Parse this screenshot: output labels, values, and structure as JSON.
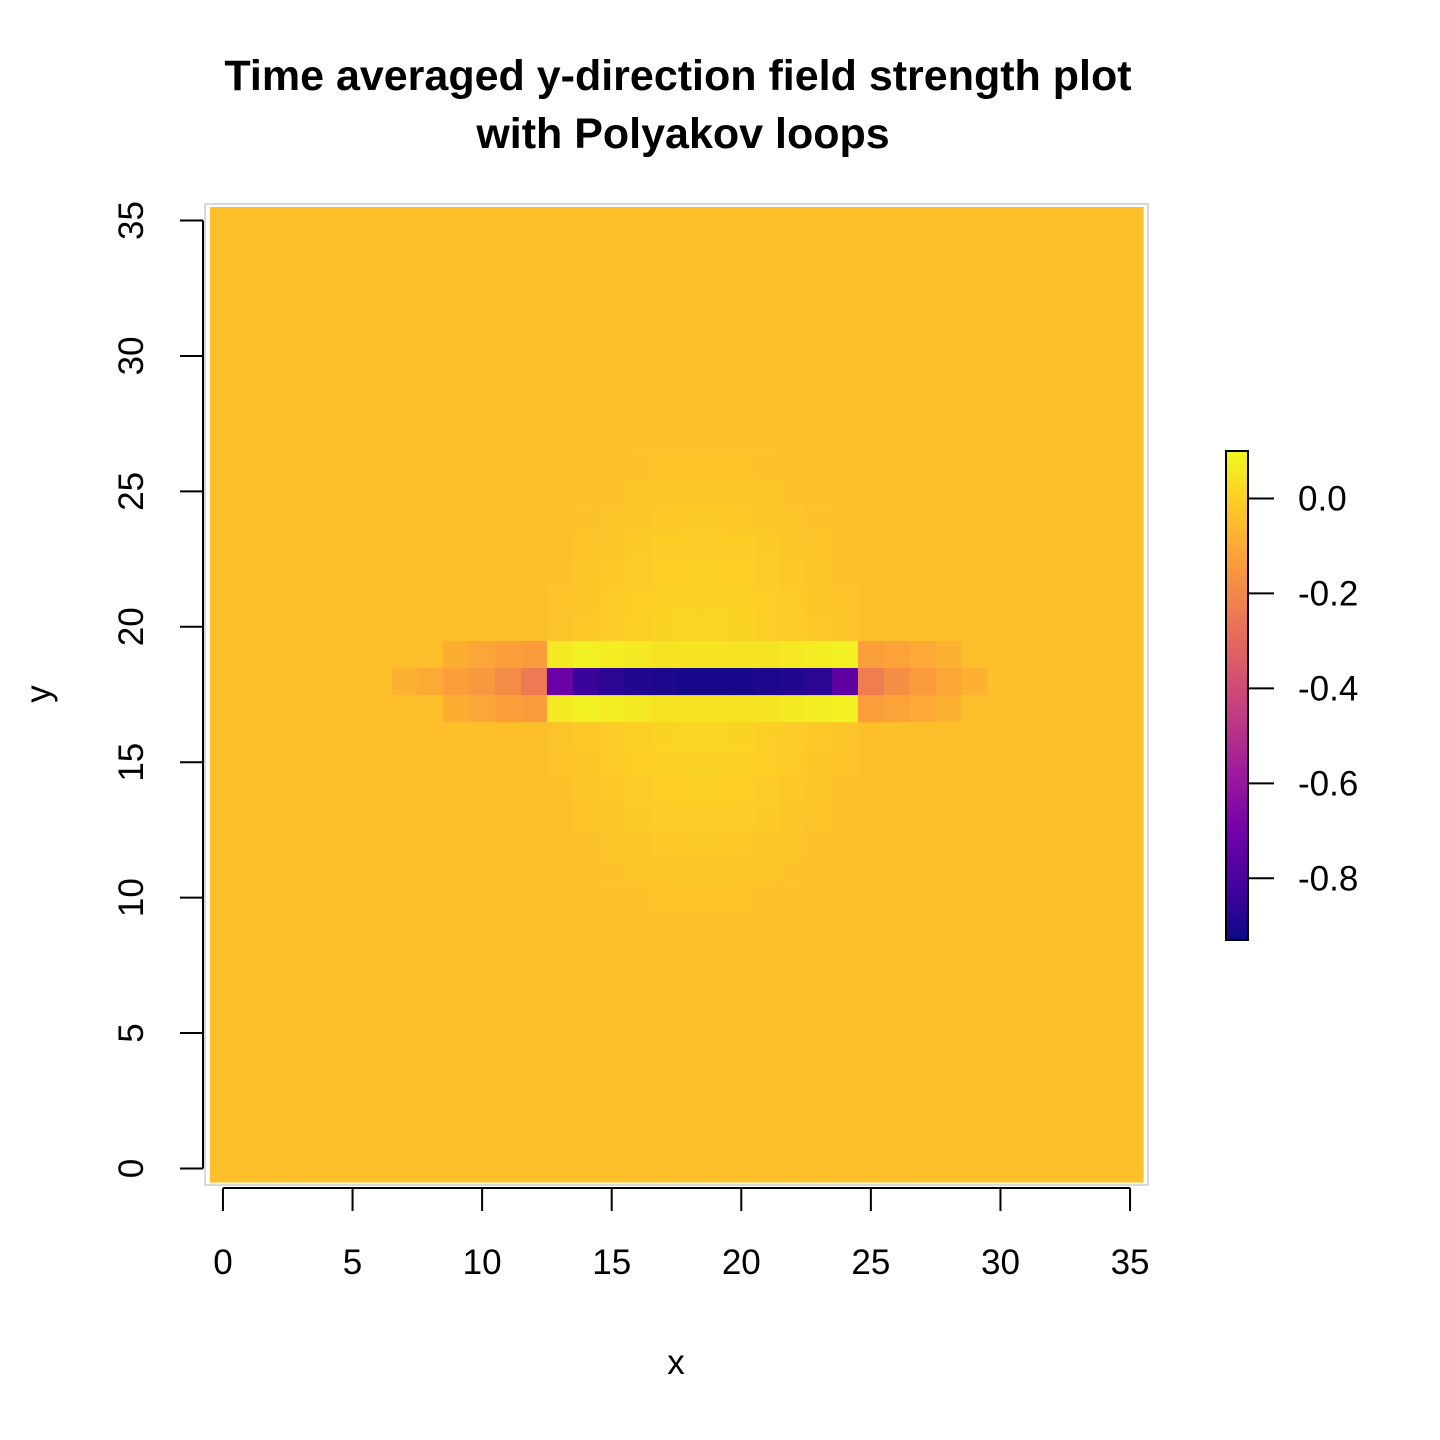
{
  "chart_data": {
    "type": "heatmap",
    "title": "Time averaged y-direction field strength plot",
    "subtitle": "with Polyakov loops",
    "xlabel": "x",
    "ylabel": "y",
    "xlim": [
      -0.5,
      35.5
    ],
    "ylim": [
      -0.5,
      35.5
    ],
    "x_ticks": [
      "0",
      "5",
      "10",
      "15",
      "20",
      "25",
      "30",
      "35"
    ],
    "y_ticks": [
      "0",
      "5",
      "10",
      "15",
      "20",
      "25",
      "30",
      "35"
    ],
    "grid_size": [
      36,
      36
    ],
    "background_value": -0.04,
    "colorbar": {
      "min": -0.93,
      "max": 0.1,
      "ticks": [
        "0.0",
        "-0.2",
        "-0.4",
        "-0.6",
        "-0.8"
      ],
      "colormap": "plasma",
      "colors": [
        "#0d0887",
        "#46039f",
        "#7201a8",
        "#9c179e",
        "#bd3786",
        "#d8576b",
        "#ed7953",
        "#fb9f3a",
        "#fdca26",
        "#f0f921"
      ]
    },
    "source_row": {
      "y": 18,
      "values": [
        {
          "x": 7,
          "v": -0.08
        },
        {
          "x": 8,
          "v": -0.1
        },
        {
          "x": 9,
          "v": -0.13
        },
        {
          "x": 10,
          "v": -0.15
        },
        {
          "x": 11,
          "v": -0.19
        },
        {
          "x": 12,
          "v": -0.24
        },
        {
          "x": 13,
          "v": -0.72
        },
        {
          "x": 14,
          "v": -0.84
        },
        {
          "x": 15,
          "v": -0.87
        },
        {
          "x": 16,
          "v": -0.89
        },
        {
          "x": 17,
          "v": -0.9
        },
        {
          "x": 18,
          "v": -0.91
        },
        {
          "x": 19,
          "v": -0.91
        },
        {
          "x": 20,
          "v": -0.91
        },
        {
          "x": 21,
          "v": -0.9
        },
        {
          "x": 22,
          "v": -0.89
        },
        {
          "x": 23,
          "v": -0.87
        },
        {
          "x": 24,
          "v": -0.75
        },
        {
          "x": 25,
          "v": -0.23
        },
        {
          "x": 26,
          "v": -0.18
        },
        {
          "x": 27,
          "v": -0.14
        },
        {
          "x": 28,
          "v": -0.11
        },
        {
          "x": 29,
          "v": -0.08
        }
      ]
    },
    "adjacent_rows": {
      "y": [
        17,
        19
      ],
      "values": [
        {
          "x": 9,
          "v": -0.09
        },
        {
          "x": 10,
          "v": -0.11
        },
        {
          "x": 11,
          "v": -0.13
        },
        {
          "x": 12,
          "v": -0.14
        },
        {
          "x": 13,
          "v": 0.06
        },
        {
          "x": 14,
          "v": 0.08
        },
        {
          "x": 15,
          "v": 0.07
        },
        {
          "x": 16,
          "v": 0.06
        },
        {
          "x": 17,
          "v": 0.05
        },
        {
          "x": 18,
          "v": 0.05
        },
        {
          "x": 19,
          "v": 0.05
        },
        {
          "x": 20,
          "v": 0.05
        },
        {
          "x": 21,
          "v": 0.05
        },
        {
          "x": 22,
          "v": 0.06
        },
        {
          "x": 23,
          "v": 0.07
        },
        {
          "x": 24,
          "v": 0.08
        },
        {
          "x": 25,
          "v": -0.13
        },
        {
          "x": 26,
          "v": -0.12
        },
        {
          "x": 27,
          "v": -0.1
        },
        {
          "x": 28,
          "v": -0.08
        }
      ]
    },
    "bright_region": {
      "x_center": 18.5,
      "y_center": 18,
      "x_radius": 6.5,
      "y_radius": 9,
      "peak": 0.03
    }
  }
}
